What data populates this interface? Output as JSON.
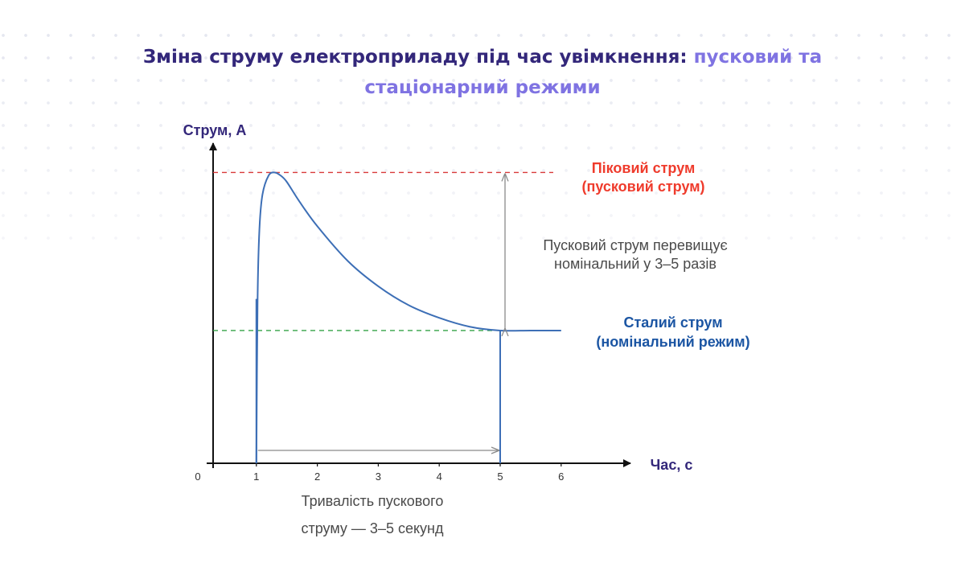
{
  "header": {
    "title_main": "Зміна струму електроприладу під час увімкнення: ",
    "title_highlight_line1": "пусковий та",
    "title_highlight_line2": "стаціонарний режими"
  },
  "colors": {
    "title": "#33277a",
    "title_highlight": "#7f73e2",
    "curve": "#3d6fb6",
    "peak_line": "#d93a3a",
    "peak_label": "#ef3b2c",
    "steady_line": "#33a246",
    "steady_label": "#1b55a3",
    "axis": "#111111",
    "annotation_arrow": "#8a8a8a",
    "annotation_text": "#4a4a4a"
  },
  "chart_data": {
    "type": "line",
    "ylabel": "Струм, А",
    "xlabel": "Час, с",
    "origin_label": "0",
    "xticks": [
      "1",
      "2",
      "3",
      "4",
      "5",
      "6"
    ],
    "xlim": [
      0,
      6.8
    ],
    "ylim": [
      0,
      4.7
    ],
    "grid": false,
    "peak_level": 4.6,
    "steady_level": 2.1,
    "switch_on_time": 1,
    "steady_from_time": 5,
    "series": [
      {
        "x": [
          1,
          1.02,
          1.05,
          1.1,
          1.2,
          1.3,
          1.4,
          1.5,
          1.7,
          2.0,
          2.5,
          3.0,
          3.5,
          4.0,
          4.5,
          5.0,
          5.5,
          6.0
        ],
        "values": [
          0,
          2.6,
          3.7,
          4.25,
          4.55,
          4.6,
          4.55,
          4.45,
          4.15,
          3.75,
          3.2,
          2.8,
          2.5,
          2.3,
          2.16,
          2.1,
          2.1,
          2.1
        ]
      }
    ],
    "annotations": {
      "peak_label_line1": "Піковий струм",
      "peak_label_line2": "(пусковий струм)",
      "steady_label_line1": "Сталий струм",
      "steady_label_line2": "(номінальний режим)",
      "ratio_line1": "Пусковий струм перевищує",
      "ratio_line2": "номінальний у 3–5 разів",
      "duration_line1": "Тривалість пускового",
      "duration_line2": "струму — 3–5 секунд"
    }
  }
}
